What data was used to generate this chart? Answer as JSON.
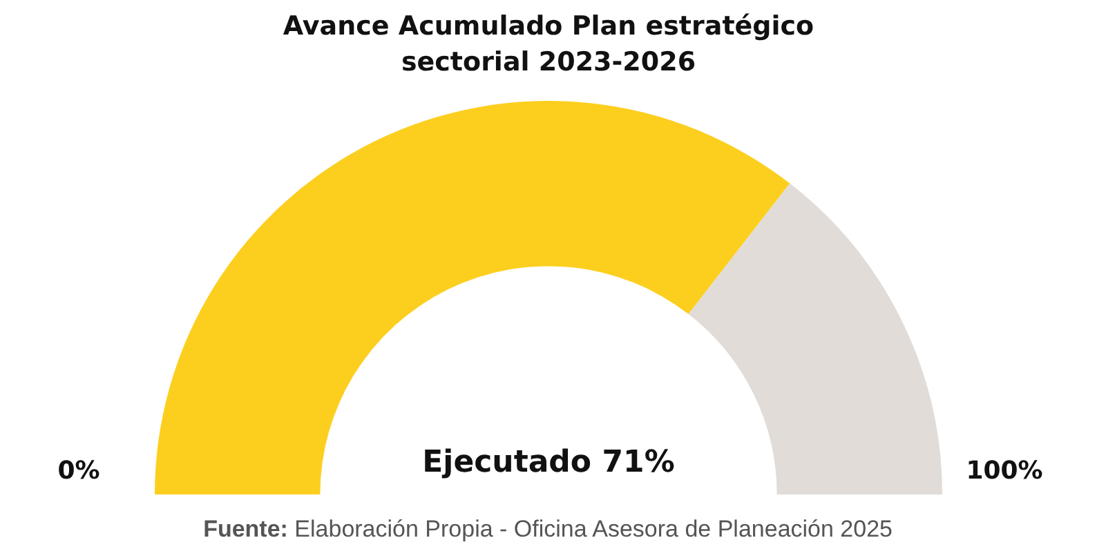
{
  "chart_data": {
    "type": "donut",
    "title": "Avance Acumulado Plan estratégico sectorial 2023-2026",
    "categories": [
      "Ejecutado",
      null
    ],
    "values": [
      71,
      29
    ],
    "colors": [
      "#fccf1f",
      "#e1dcd7"
    ],
    "value_labels": [
      "71%",
      null
    ],
    "legend": false,
    "annotations": [
      "0%",
      "100%",
      "Fuente: Elaboración Propia - Oficina Asesora de Planeación 2025"
    ]
  }
}
